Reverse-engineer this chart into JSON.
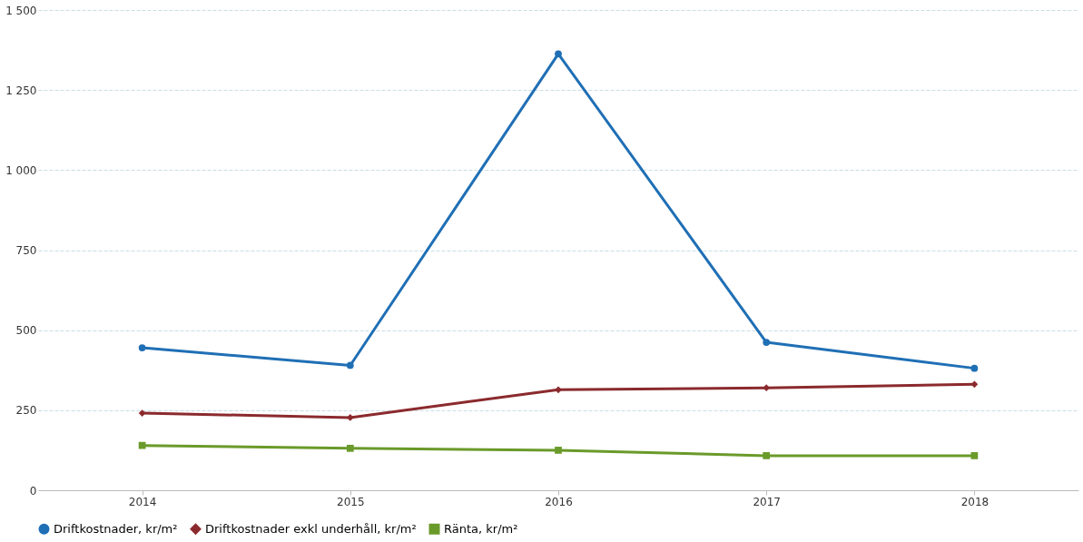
{
  "chart_data": {
    "type": "line",
    "categories": [
      "2014",
      "2015",
      "2016",
      "2017",
      "2018"
    ],
    "series": [
      {
        "name": "Driftkostnader, kr/m²",
        "color": "#1f6fb5",
        "marker": "circle",
        "values": [
          445,
          390,
          1363,
          462,
          381
        ]
      },
      {
        "name": "Driftkostnader exkl underhåll, kr/m²",
        "color": "#8b2a2e",
        "marker": "diamond",
        "values": [
          241,
          227,
          314,
          320,
          331
        ]
      },
      {
        "name": "Ränta, kr/m²",
        "color": "#6a9a2a",
        "marker": "square",
        "values": [
          140,
          131,
          125,
          108,
          108
        ]
      }
    ],
    "ylim": [
      0,
      1500
    ],
    "yticks": [
      0,
      250,
      500,
      750,
      {
        "value": 1000,
        "label": "1 000"
      },
      {
        "value": 1250,
        "label": "1 250"
      },
      {
        "value": 1500,
        "label": "1 500"
      }
    ],
    "grid": "y",
    "legend": "bottom",
    "line_style": "solid"
  }
}
